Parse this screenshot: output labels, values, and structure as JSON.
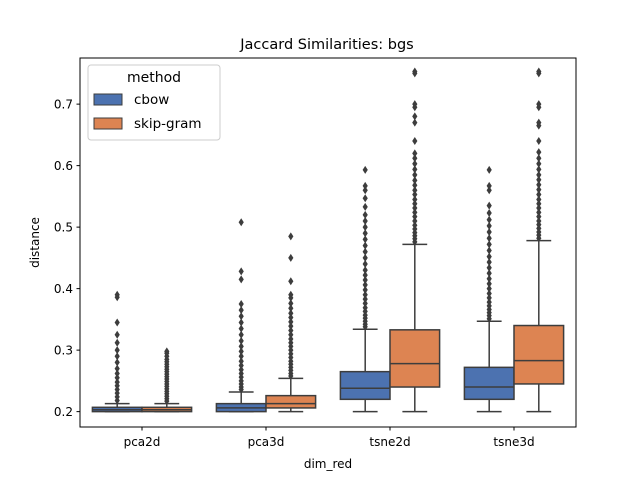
{
  "chart_data": {
    "type": "box",
    "title": "Jaccard Similarities: bgs",
    "xlabel": "dim_red",
    "ylabel": "distance",
    "ylim": [
      0.175,
      0.775
    ],
    "yticks": [
      0.2,
      0.3,
      0.4,
      0.5,
      0.6,
      0.7
    ],
    "ytick_labels": [
      "0.2",
      "0.3",
      "0.4",
      "0.5",
      "0.6",
      "0.7"
    ],
    "categories": [
      "pca2d",
      "pca3d",
      "tsne2d",
      "tsne3d"
    ],
    "grid": false,
    "legend": {
      "title": "method",
      "position": "top-left"
    },
    "series": [
      {
        "name": "cbow",
        "color": "#4c72b0",
        "boxes": [
          {
            "whisker_low": 0.2,
            "q1": 0.2,
            "median": 0.203,
            "q3": 0.207,
            "whisker_high": 0.213,
            "outliers": [
              0.218,
              0.224,
              0.23,
              0.236,
              0.242,
              0.248,
              0.255,
              0.262,
              0.27,
              0.28,
              0.29,
              0.3,
              0.312,
              0.325,
              0.345,
              0.386,
              0.39
            ]
          },
          {
            "whisker_low": 0.2,
            "q1": 0.2,
            "median": 0.206,
            "q3": 0.213,
            "whisker_high": 0.232,
            "outliers": [
              0.236,
              0.24,
              0.245,
              0.25,
              0.256,
              0.262,
              0.268,
              0.275,
              0.282,
              0.29,
              0.298,
              0.306,
              0.315,
              0.325,
              0.335,
              0.345,
              0.355,
              0.365,
              0.375,
              0.415,
              0.428,
              0.508
            ]
          },
          {
            "whisker_low": 0.2,
            "q1": 0.22,
            "median": 0.238,
            "q3": 0.265,
            "whisker_high": 0.334,
            "outliers": [
              0.338,
              0.342,
              0.347,
              0.352,
              0.357,
              0.363,
              0.369,
              0.376,
              0.383,
              0.39,
              0.398,
              0.406,
              0.414,
              0.422,
              0.43,
              0.44,
              0.45,
              0.46,
              0.47,
              0.48,
              0.49,
              0.5,
              0.51,
              0.52,
              0.533,
              0.547,
              0.56,
              0.567,
              0.593
            ]
          },
          {
            "whisker_low": 0.2,
            "q1": 0.22,
            "median": 0.24,
            "q3": 0.272,
            "whisker_high": 0.347,
            "outliers": [
              0.351,
              0.356,
              0.361,
              0.366,
              0.372,
              0.378,
              0.385,
              0.392,
              0.4,
              0.408,
              0.416,
              0.425,
              0.434,
              0.443,
              0.452,
              0.462,
              0.472,
              0.482,
              0.492,
              0.502,
              0.512,
              0.523,
              0.535,
              0.56,
              0.567,
              0.593
            ]
          }
        ]
      },
      {
        "name": "skip-gram",
        "color": "#dd8452",
        "boxes": [
          {
            "whisker_low": 0.2,
            "q1": 0.2,
            "median": 0.203,
            "q3": 0.207,
            "whisker_high": 0.213,
            "outliers": [
              0.217,
              0.221,
              0.225,
              0.229,
              0.233,
              0.237,
              0.241,
              0.245,
              0.249,
              0.253,
              0.257,
              0.261,
              0.265,
              0.269,
              0.273,
              0.277,
              0.281,
              0.285,
              0.29,
              0.295,
              0.298
            ]
          },
          {
            "whisker_low": 0.2,
            "q1": 0.206,
            "median": 0.213,
            "q3": 0.226,
            "whisker_high": 0.254,
            "outliers": [
              0.258,
              0.262,
              0.267,
              0.272,
              0.277,
              0.282,
              0.288,
              0.294,
              0.3,
              0.306,
              0.312,
              0.318,
              0.325,
              0.332,
              0.339,
              0.346,
              0.353,
              0.36,
              0.368,
              0.376,
              0.385,
              0.39,
              0.412,
              0.45,
              0.485
            ]
          },
          {
            "whisker_low": 0.2,
            "q1": 0.24,
            "median": 0.278,
            "q3": 0.333,
            "whisker_high": 0.472,
            "outliers": [
              0.476,
              0.481,
              0.486,
              0.491,
              0.497,
              0.503,
              0.51,
              0.517,
              0.524,
              0.531,
              0.538,
              0.545,
              0.553,
              0.56,
              0.568,
              0.576,
              0.585,
              0.594,
              0.603,
              0.612,
              0.62,
              0.64,
              0.67,
              0.68,
              0.695,
              0.7,
              0.75,
              0.753
            ]
          },
          {
            "whisker_low": 0.2,
            "q1": 0.245,
            "median": 0.283,
            "q3": 0.34,
            "whisker_high": 0.478,
            "outliers": [
              0.482,
              0.487,
              0.492,
              0.498,
              0.504,
              0.51,
              0.517,
              0.524,
              0.531,
              0.538,
              0.545,
              0.553,
              0.561,
              0.569,
              0.577,
              0.585,
              0.594,
              0.603,
              0.612,
              0.622,
              0.64,
              0.665,
              0.67,
              0.695,
              0.7,
              0.75,
              0.753
            ]
          }
        ]
      }
    ]
  }
}
